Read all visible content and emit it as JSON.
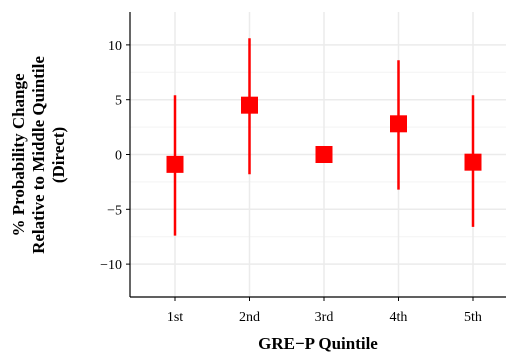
{
  "chart_data": {
    "type": "scatter",
    "xlabel": "GRE−P Quintile",
    "ylabel_lines": [
      "% Probability Change",
      "Relative to Middle Quintile",
      "(Direct)"
    ],
    "categories": [
      "1st",
      "2nd",
      "3rd",
      "4th",
      "5th"
    ],
    "points": [
      {
        "category": "1st",
        "estimate": -0.9,
        "lower": -7.4,
        "upper": 5.4
      },
      {
        "category": "2nd",
        "estimate": 4.5,
        "lower": -1.8,
        "upper": 10.6
      },
      {
        "category": "3rd",
        "estimate": 0.0,
        "lower": 0.0,
        "upper": 0.0
      },
      {
        "category": "4th",
        "estimate": 2.8,
        "lower": -3.2,
        "upper": 8.6
      },
      {
        "category": "5th",
        "estimate": -0.7,
        "lower": -6.6,
        "upper": 5.4
      }
    ],
    "ylim": [
      -13,
      13
    ],
    "yticks": [
      -10,
      -5,
      0,
      5,
      10
    ],
    "ytick_labels": [
      "−10",
      "−5",
      "0",
      "5",
      "10"
    ],
    "color": "#ff0000",
    "grid": true,
    "legend": "none"
  }
}
